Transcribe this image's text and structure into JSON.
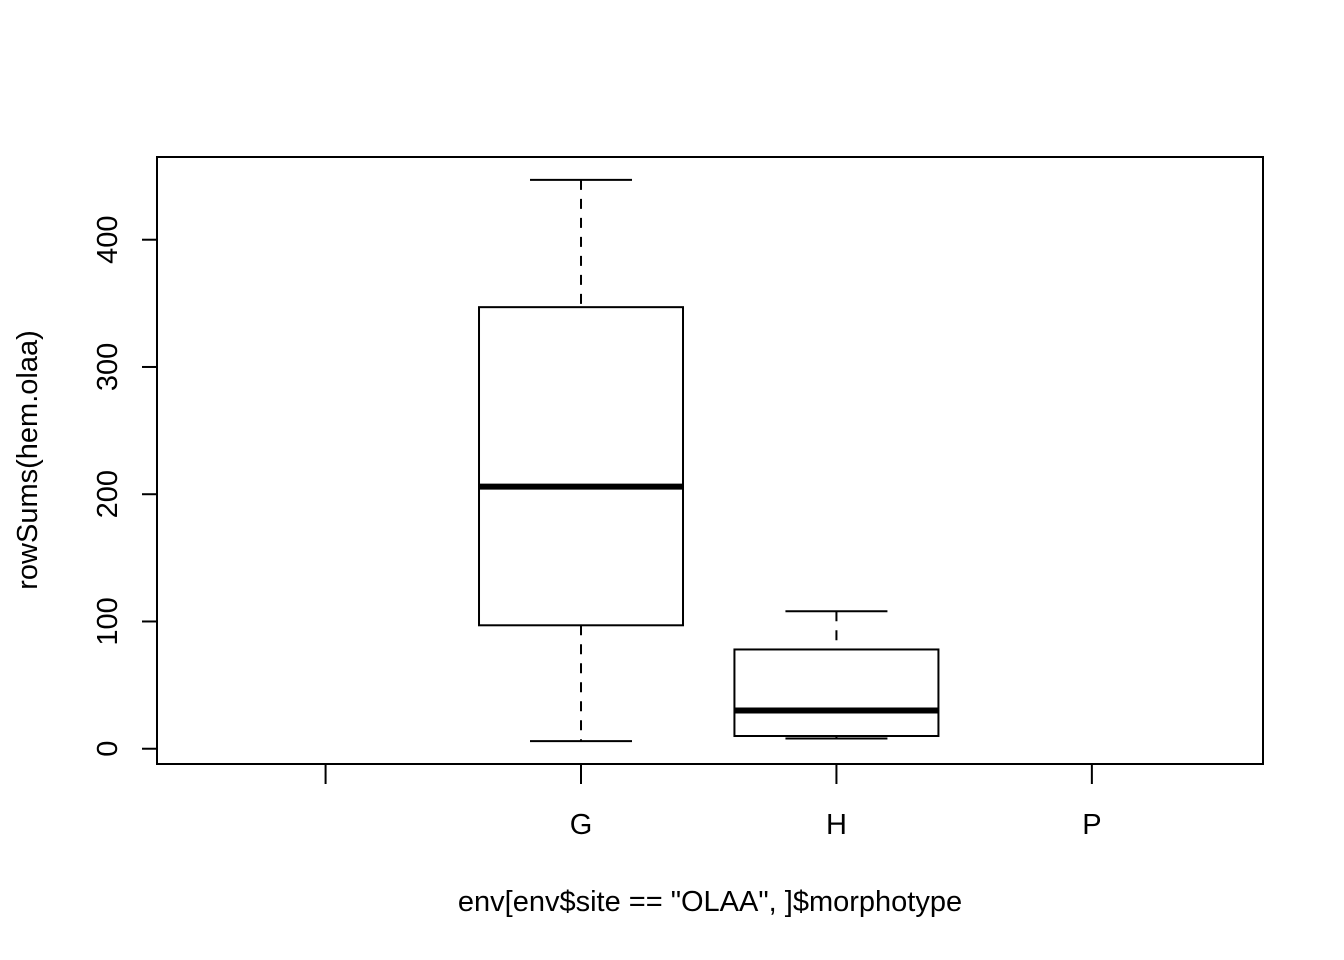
{
  "chart_data": {
    "type": "boxplot",
    "title": "",
    "xlabel": "env[env$site == \"OLAA\", ]$morphotype",
    "ylabel": "rowSums(hem.olaa)",
    "categories": [
      "",
      "G",
      "H",
      "P"
    ],
    "ylim": [
      -12,
      465
    ],
    "yticks": [
      0,
      100,
      200,
      300,
      400
    ],
    "grid": false,
    "legend": "none",
    "boxes": [
      {
        "category": "G",
        "whisker_low": 6,
        "q1": 97,
        "median": 206,
        "q3": 347,
        "whisker_high": 447
      },
      {
        "category": "H",
        "whisker_low": 8,
        "q1": 10,
        "median": 30,
        "q3": 78,
        "whisker_high": 108
      }
    ]
  }
}
